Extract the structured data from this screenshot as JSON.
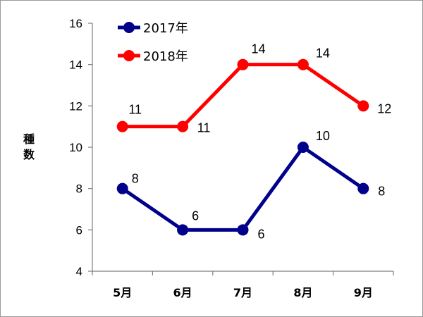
{
  "chart_data": {
    "type": "line",
    "categories": [
      "5月",
      "6月",
      "7月",
      "8月",
      "9月"
    ],
    "ylabel": "種数",
    "ylim": [
      4,
      16
    ],
    "yticks": [
      4,
      6,
      8,
      10,
      12,
      14,
      16
    ],
    "grid": false,
    "legend_position": "top-left",
    "series": [
      {
        "name": "2017年",
        "values": [
          8,
          6,
          6,
          10,
          8
        ],
        "color": "#00008b"
      },
      {
        "name": "2018年",
        "values": [
          11,
          11,
          14,
          14,
          12
        ],
        "color": "#ff0000"
      }
    ]
  }
}
